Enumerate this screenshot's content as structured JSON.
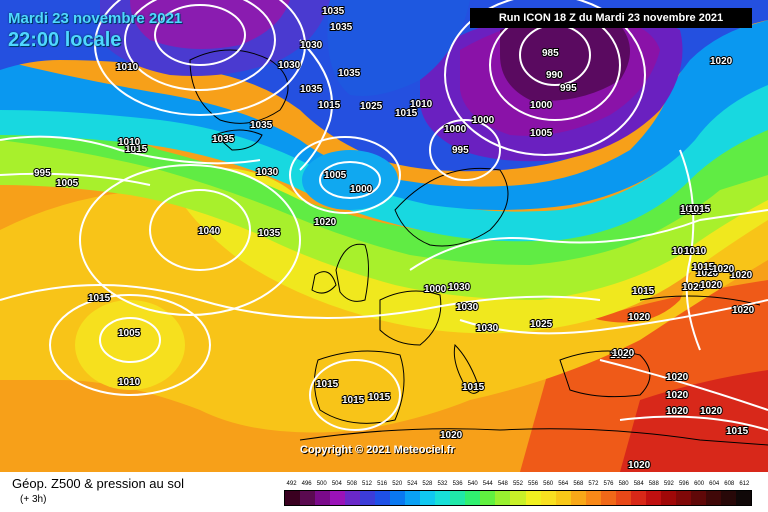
{
  "header": {
    "date": "Mardi 23 novembre 2021",
    "time": "22:00 locale",
    "run": "Run ICON 18 Z du Mardi 23 novembre 2021"
  },
  "copyright": "Copyright © 2021 Meteociel.fr",
  "legend": {
    "title": "Géop. Z500 & pression au sol",
    "subtitle": "(+ 3h)",
    "scale_values": [
      "492",
      "496",
      "500",
      "504",
      "508",
      "512",
      "516",
      "520",
      "524",
      "528",
      "532",
      "536",
      "540",
      "544",
      "548",
      "552",
      "556",
      "560",
      "564",
      "568",
      "572",
      "576",
      "580",
      "584",
      "588",
      "592",
      "596",
      "600",
      "604",
      "608",
      "612"
    ],
    "scale_colors": [
      "#3a0020",
      "#5a0a50",
      "#7a0a8a",
      "#9a12b8",
      "#6a28c8",
      "#3c3cd8",
      "#1e50e6",
      "#0a78f0",
      "#0aa0f4",
      "#10c8f0",
      "#18e0d8",
      "#20e8a8",
      "#30f070",
      "#60f040",
      "#98f030",
      "#c8f028",
      "#f0f020",
      "#f8e020",
      "#f8c818",
      "#f8a818",
      "#f88818",
      "#f06818",
      "#e84818",
      "#d82818",
      "#c01010",
      "#a00808",
      "#800808",
      "#600808",
      "#400808",
      "#280808",
      "#100808"
    ]
  },
  "isobars": [
    "1035",
    "1030",
    "1035",
    "1010",
    "1030",
    "1035",
    "1025",
    "1010",
    "1015",
    "985",
    "990",
    "995",
    "1000",
    "1000",
    "1005",
    "1020",
    "1035",
    "1035",
    "1015",
    "1035",
    "1010",
    "1015",
    "1000",
    "995",
    "1005",
    "1030",
    "1005",
    "995",
    "1000",
    "1040",
    "1035",
    "1020",
    "1015",
    "1000",
    "1030",
    "1030",
    "1030",
    "1025",
    "1015",
    "1010",
    "1015",
    "1010",
    "1005",
    "1010",
    "1015",
    "1015",
    "1015",
    "1015",
    "1020",
    "1020",
    "1020",
    "1020",
    "1020",
    "1020",
    "1015",
    "1020",
    "1020",
    "1020",
    "1015",
    "1020",
    "1020",
    "1020",
    "1015",
    "1020",
    "1020",
    "1015",
    "1020"
  ]
}
